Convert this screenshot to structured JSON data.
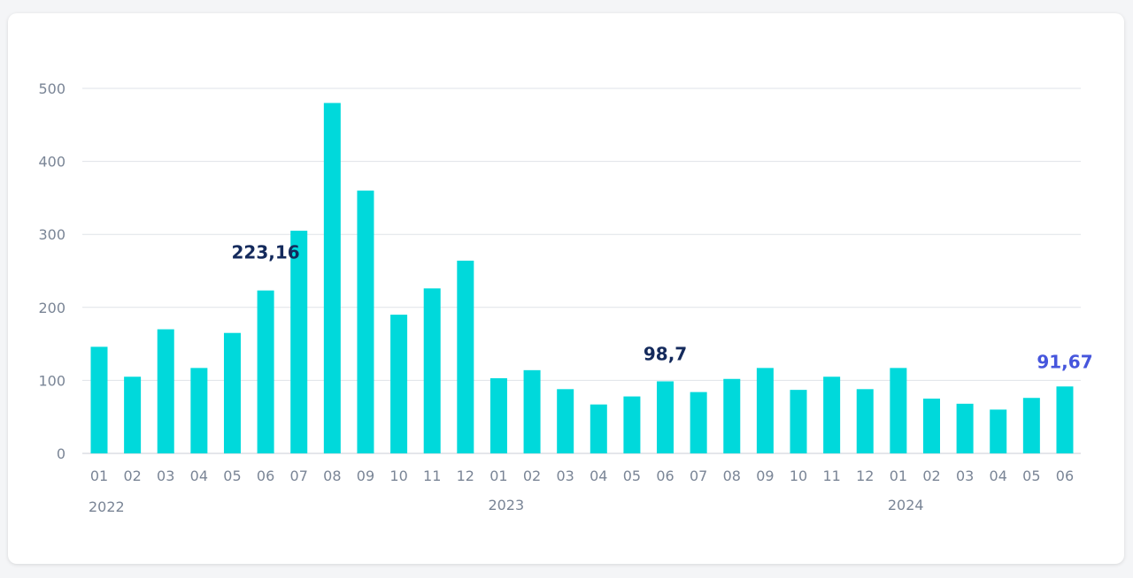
{
  "chart_data": {
    "type": "bar",
    "categories": [
      "01",
      "02",
      "03",
      "04",
      "05",
      "06",
      "07",
      "08",
      "09",
      "10",
      "11",
      "12",
      "01",
      "02",
      "03",
      "04",
      "05",
      "06",
      "07",
      "08",
      "09",
      "10",
      "11",
      "12",
      "01",
      "02",
      "03",
      "04",
      "05",
      "06"
    ],
    "years": [
      {
        "label": "2022",
        "start_index": 0
      },
      {
        "label": "2023",
        "start_index": 12
      },
      {
        "label": "2024",
        "start_index": 24
      }
    ],
    "values": [
      146,
      105,
      170,
      117,
      165,
      223.16,
      305,
      480,
      360,
      190,
      226,
      264,
      103,
      114,
      88,
      67,
      78,
      98.7,
      84,
      102,
      117,
      87,
      105,
      88,
      117,
      75,
      68,
      60,
      76,
      91.67
    ],
    "ylim": [
      0,
      500
    ],
    "yticks": [
      0,
      100,
      200,
      300,
      400,
      500
    ],
    "grid": true,
    "bar_color": "#00d9db",
    "annotations": [
      {
        "index": 5,
        "label": "223,16",
        "color": "#142a5c"
      },
      {
        "index": 17,
        "label": "98,7",
        "color": "#142a5c"
      },
      {
        "index": 29,
        "label": "91,67",
        "color": "#4656dd"
      }
    ]
  }
}
